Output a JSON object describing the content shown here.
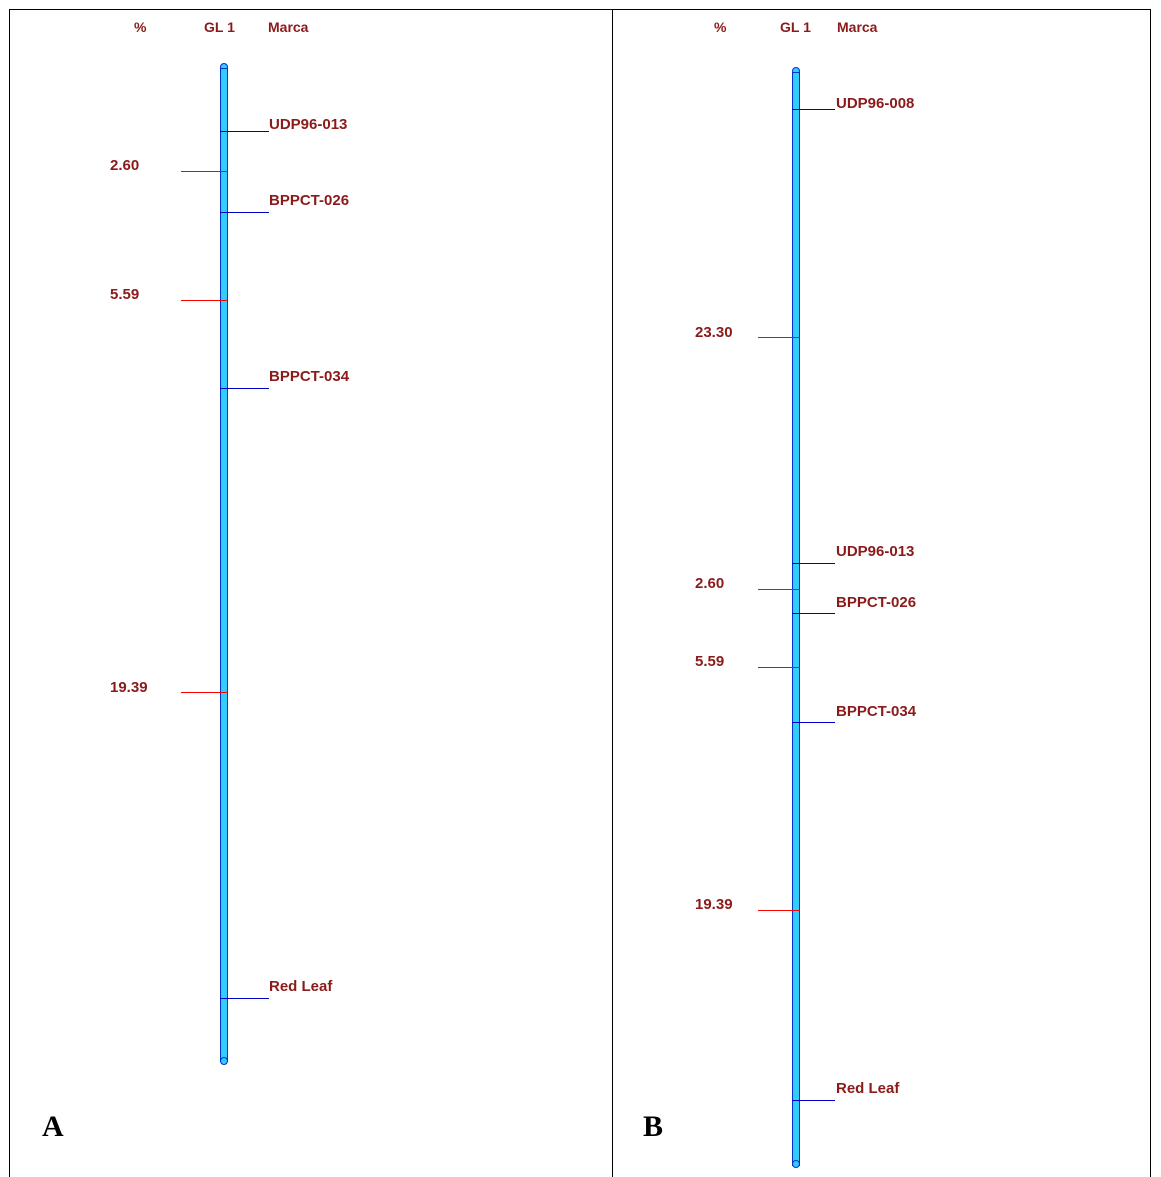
{
  "panels": [
    {
      "letter": "A",
      "header": {
        "percent": "%",
        "group": "GL 1",
        "marker": "Marca"
      },
      "percents": [
        "2.60",
        "5.59",
        "19.39"
      ],
      "markers": [
        "UDP96-013",
        "BPPCT-026",
        "BPPCT-034",
        "Red Leaf"
      ]
    },
    {
      "letter": "B",
      "header": {
        "percent": "%",
        "group": "GL 1",
        "marker": "Marca"
      },
      "percents": [
        "23.30",
        "2.60",
        "5.59",
        "19.39"
      ],
      "markers": [
        "UDP96-008",
        "UDP96-013",
        "BPPCT-026",
        "BPPCT-034",
        "Red Leaf"
      ]
    }
  ],
  "colors": {
    "bar": "#33ccff",
    "bar_border": "#0033cc",
    "percent_tick": "#ff0000",
    "marker_tick": "#0000cc",
    "text": "#8b1a1a"
  }
}
